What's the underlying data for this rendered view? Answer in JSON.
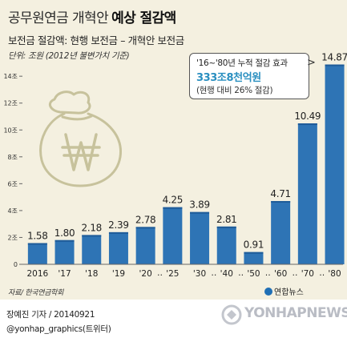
{
  "title_main": "공무원연금 개혁안",
  "title_highlight": "예상 절감액",
  "subtitle": "보전금 절감액: 현행 보전금 – 개혁안 보전금",
  "unit_note": "단위: 조원 (2012년 불변가치 기준)",
  "callout": {
    "line1": "'16~'80년 누적 절감 효과",
    "line2": "333조8천억원",
    "line3": "(현행 대비 26% 절감)",
    "arrow": ">"
  },
  "source": "자료/ 한국연금학회",
  "logo_text": "연합뉴스",
  "byline": "장예진 기자 / 20140921",
  "handle": "@yonhap_graphics(트위터)",
  "watermark": "YONHAPNEWS",
  "colors": {
    "bar": "#2e74b5",
    "bar_top": "#1f5c99",
    "background": "#f4f0e0",
    "callout_value": "#2a8fc0"
  },
  "icons": [
    "money-bag-icon",
    "won-sign-icon",
    "yonhap-logo-icon"
  ],
  "chart_data": {
    "type": "bar",
    "categories": [
      "2016",
      "'17",
      "'18",
      "'19",
      "'20",
      "'25",
      "'30",
      "'40",
      "'50",
      "'60",
      "'70",
      "'80"
    ],
    "values": [
      1.58,
      1.8,
      2.18,
      2.39,
      2.78,
      4.25,
      3.89,
      2.81,
      0.91,
      4.71,
      10.49,
      14.87
    ],
    "value_labels": [
      "1.58",
      "1.80",
      "2.18",
      "2.39",
      "2.78",
      "4.25",
      "3.89",
      "2.81",
      "0.91",
      "4.71",
      "10.49",
      "14.87"
    ],
    "y_ticks": [
      0,
      2,
      4,
      6,
      8,
      10,
      12,
      14
    ],
    "y_tick_labels": [
      "0",
      "2조",
      "4조",
      "6조",
      "8조",
      "10조",
      "12조",
      "14조"
    ],
    "ylim": [
      0,
      15.5
    ],
    "grid": false,
    "ellipsis_separator": "‥",
    "ellipsis_after": [
      4,
      6,
      7,
      8,
      9,
      10
    ]
  }
}
